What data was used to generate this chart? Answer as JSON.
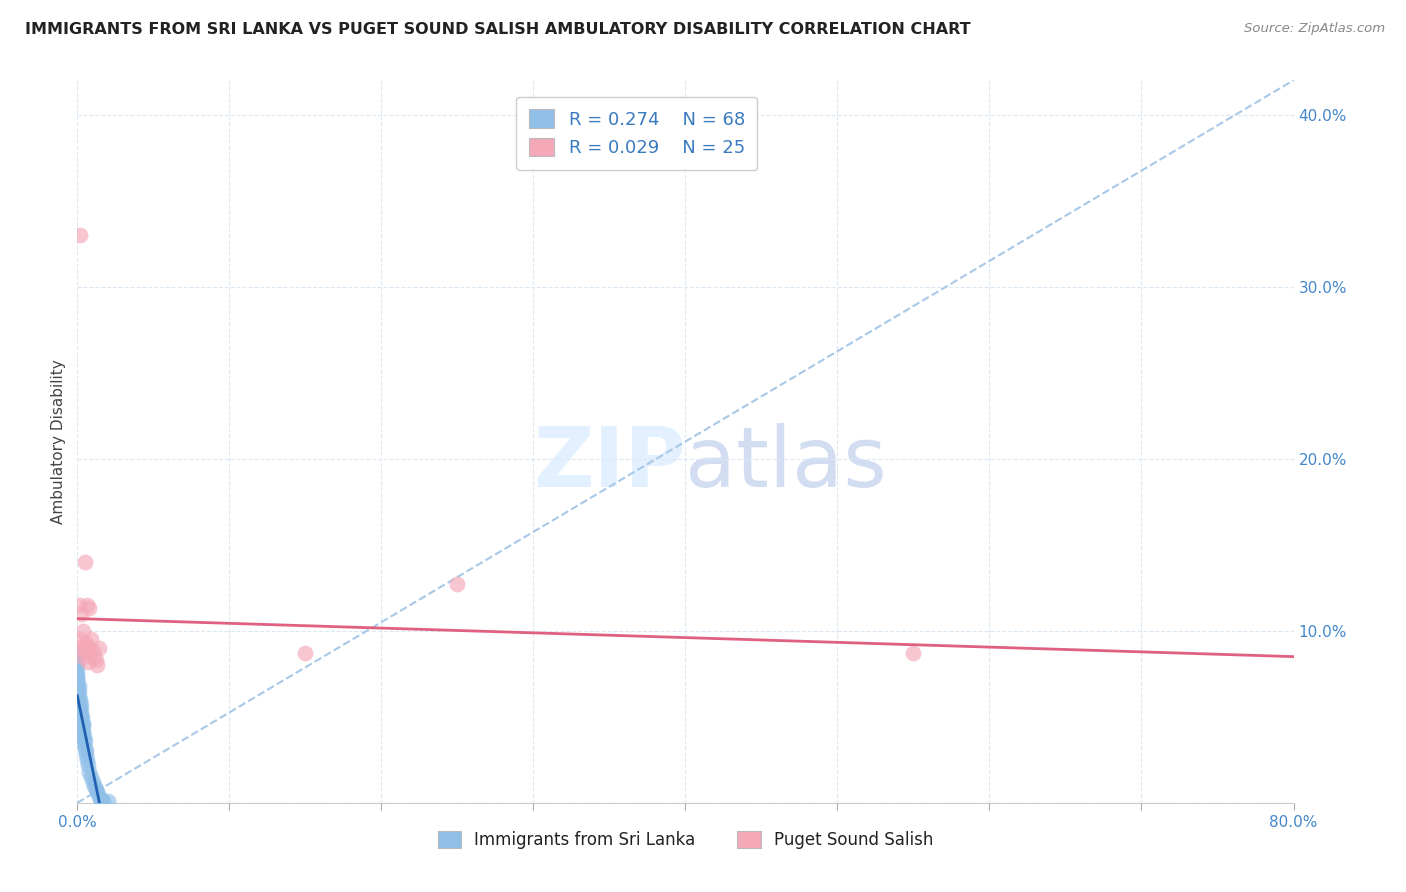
{
  "title": "IMMIGRANTS FROM SRI LANKA VS PUGET SOUND SALISH AMBULATORY DISABILITY CORRELATION CHART",
  "source": "Source: ZipAtlas.com",
  "xlabel_blue": "Immigrants from Sri Lanka",
  "xlabel_pink": "Puget Sound Salish",
  "ylabel": "Ambulatory Disability",
  "xmin": 0.0,
  "xmax": 0.8,
  "ymin": 0.0,
  "ymax": 0.42,
  "R_blue": 0.274,
  "N_blue": 68,
  "R_pink": 0.029,
  "N_pink": 25,
  "blue_color": "#90bfe8",
  "pink_color": "#f4a8b8",
  "blue_line_color": "#2060b0",
  "pink_line_color": "#e06080",
  "diag_color": "#a8c8e8",
  "grid_color": "#dce8f4",
  "blue_scatter_x": [
    0.0,
    0.0,
    0.0,
    0.0,
    0.0,
    0.0,
    0.0,
    0.0,
    0.0,
    0.0,
    0.0,
    0.0,
    0.0,
    0.0,
    0.0,
    0.0,
    0.0,
    0.0,
    0.0,
    0.0,
    0.001,
    0.001,
    0.001,
    0.001,
    0.001,
    0.001,
    0.001,
    0.001,
    0.0015,
    0.0015,
    0.002,
    0.002,
    0.002,
    0.002,
    0.002,
    0.002,
    0.0025,
    0.0025,
    0.0025,
    0.0025,
    0.003,
    0.003,
    0.003,
    0.003,
    0.0035,
    0.0035,
    0.0035,
    0.004,
    0.004,
    0.004,
    0.0045,
    0.005,
    0.005,
    0.0055,
    0.006,
    0.0065,
    0.007,
    0.008,
    0.009,
    0.01,
    0.011,
    0.012,
    0.013,
    0.014,
    0.015,
    0.016,
    0.017,
    0.02
  ],
  "blue_scatter_y": [
    0.06,
    0.065,
    0.07,
    0.072,
    0.075,
    0.078,
    0.08,
    0.082,
    0.085,
    0.087,
    0.05,
    0.055,
    0.06,
    0.063,
    0.065,
    0.068,
    0.07,
    0.073,
    0.055,
    0.06,
    0.045,
    0.048,
    0.052,
    0.055,
    0.058,
    0.062,
    0.065,
    0.068,
    0.05,
    0.055,
    0.04,
    0.045,
    0.048,
    0.052,
    0.055,
    0.06,
    0.045,
    0.05,
    0.053,
    0.057,
    0.04,
    0.043,
    0.047,
    0.05,
    0.038,
    0.042,
    0.046,
    0.035,
    0.04,
    0.045,
    0.038,
    0.032,
    0.036,
    0.03,
    0.028,
    0.025,
    0.022,
    0.018,
    0.015,
    0.012,
    0.01,
    0.008,
    0.006,
    0.004,
    0.002,
    0.001,
    0.001,
    0.001
  ],
  "pink_scatter_x": [
    0.001,
    0.0015,
    0.002,
    0.0025,
    0.003,
    0.0035,
    0.004,
    0.0045,
    0.005,
    0.0055,
    0.006,
    0.0065,
    0.007,
    0.0075,
    0.008,
    0.009,
    0.01,
    0.011,
    0.012,
    0.013,
    0.014,
    0.15,
    0.25,
    0.55,
    0.005
  ],
  "pink_scatter_y": [
    0.115,
    0.33,
    0.095,
    0.11,
    0.09,
    0.1,
    0.085,
    0.092,
    0.088,
    0.093,
    0.087,
    0.115,
    0.082,
    0.09,
    0.113,
    0.095,
    0.088,
    0.085,
    0.083,
    0.08,
    0.09,
    0.087,
    0.127,
    0.087,
    0.14
  ]
}
